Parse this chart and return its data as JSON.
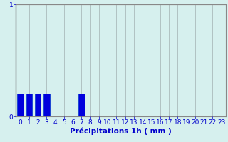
{
  "hours": [
    0,
    1,
    2,
    3,
    4,
    5,
    6,
    7,
    8,
    9,
    10,
    11,
    12,
    13,
    14,
    15,
    16,
    17,
    18,
    19,
    20,
    21,
    22,
    23
  ],
  "values": [
    0.2,
    0.2,
    0.2,
    0.2,
    0.0,
    0.0,
    0.0,
    0.2,
    0.0,
    0.0,
    0.0,
    0.0,
    0.0,
    0.0,
    0.0,
    0.0,
    0.0,
    0.0,
    0.0,
    0.0,
    0.0,
    0.0,
    0.0,
    0.0
  ],
  "bar_color": "#0000dd",
  "bar_edge_color": "#0033cc",
  "background_color": "#d6f0ee",
  "grid_color_h": "#cc8888",
  "grid_color_v": "#aabbbb",
  "xlabel": "Précipitations 1h ( mm )",
  "xlabel_color": "#0000cc",
  "ylabel_color": "#0000cc",
  "tick_color": "#0000cc",
  "ylim": [
    0,
    1
  ],
  "yticks": [
    0,
    1
  ],
  "xlabel_fontsize": 7.5,
  "tick_fontsize": 6.5
}
